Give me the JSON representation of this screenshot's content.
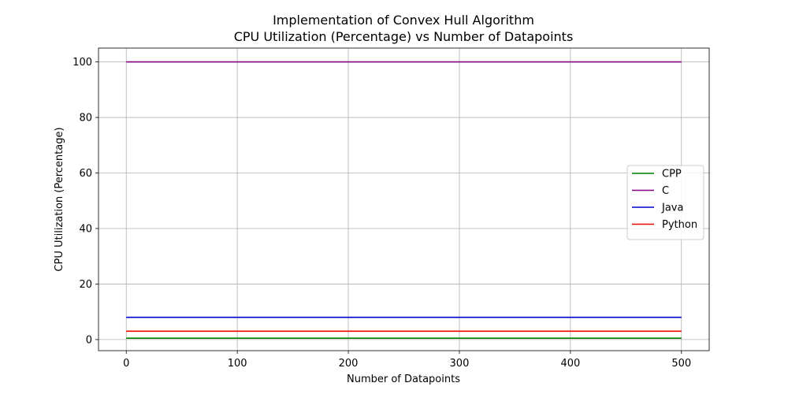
{
  "chart_data": {
    "type": "line",
    "title": "Implementation of Convex Hull Algorithm",
    "subtitle": "CPU Utilization (Percentage) vs Number of Datapoints",
    "xlabel": "Number of Datapoints",
    "ylabel": "CPU Utilization (Percentage)",
    "xlim": [
      -25,
      525
    ],
    "ylim": [
      -4,
      105
    ],
    "xticks": [
      0,
      100,
      200,
      300,
      400,
      500
    ],
    "yticks": [
      0,
      20,
      40,
      60,
      80,
      100
    ],
    "grid": true,
    "legend_position": "center-right",
    "series": [
      {
        "name": "CPP",
        "color": "#008000",
        "x": [
          0,
          500
        ],
        "y": [
          0.5,
          0.5
        ]
      },
      {
        "name": "C",
        "color": "#800080",
        "x": [
          0,
          500
        ],
        "y": [
          100,
          100
        ]
      },
      {
        "name": "Java",
        "color": "#0000cc",
        "x": [
          0,
          500
        ],
        "y": [
          8,
          8
        ]
      },
      {
        "name": "Python",
        "color": "#ee0000",
        "x": [
          0,
          500
        ],
        "y": [
          3,
          3
        ]
      }
    ]
  }
}
